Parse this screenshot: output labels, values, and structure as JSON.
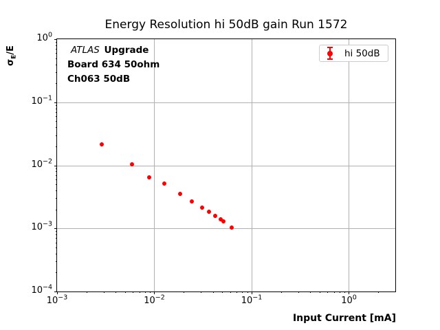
{
  "title": "Energy Resolution hi 50dB gain Run 1572",
  "annotation": {
    "line1_italic": "ATLAS",
    "line1_bold": "Upgrade",
    "line2": "Board 634 50ohm",
    "line3": "Ch063 50dB"
  },
  "legend": {
    "label": "hi 50dB"
  },
  "axes": {
    "xlabel": "Input Current [mA]",
    "ylabel_parts": {
      "sigma": "σ",
      "sub": "E",
      "rest": "/E"
    },
    "x_ticks": [
      {
        "base": "10",
        "exp": "−3"
      },
      {
        "base": "10",
        "exp": "−2"
      },
      {
        "base": "10",
        "exp": "−1"
      },
      {
        "base": "10",
        "exp": "0"
      }
    ],
    "y_ticks": [
      {
        "base": "10",
        "exp": "0"
      },
      {
        "base": "10",
        "exp": "−1"
      },
      {
        "base": "10",
        "exp": "−2"
      },
      {
        "base": "10",
        "exp": "−3"
      },
      {
        "base": "10",
        "exp": "−4"
      }
    ]
  },
  "colors": {
    "series": "#ff0000",
    "grid": "#b0b0b0",
    "spine": "#000000",
    "legend_border": "#cccccc"
  },
  "chart_data": {
    "type": "scatter",
    "title": "Energy Resolution hi 50dB gain Run 1572",
    "xlabel": "Input Current [mA]",
    "ylabel": "sigma_E / E",
    "xscale": "log",
    "yscale": "log",
    "xlim": [
      0.001,
      3.0
    ],
    "ylim": [
      0.0001,
      1.0
    ],
    "grid": "major",
    "legend_position": "upper right",
    "x_major_ticks": [
      0.001,
      0.01,
      0.1,
      1.0
    ],
    "y_major_ticks": [
      1.0,
      0.1,
      0.01,
      0.001,
      0.0001
    ],
    "series": [
      {
        "name": "hi 50dB",
        "color": "#ff0000",
        "marker": "circle",
        "errorbars": true,
        "x": [
          0.0029,
          0.0059,
          0.0088,
          0.0126,
          0.0183,
          0.0242,
          0.0311,
          0.0362,
          0.0419,
          0.0477,
          0.0517,
          0.062
        ],
        "y": [
          0.0216,
          0.0105,
          0.0065,
          0.0052,
          0.0035,
          0.0027,
          0.00216,
          0.00186,
          0.00158,
          0.0014,
          0.00128,
          0.00104
        ]
      }
    ]
  }
}
